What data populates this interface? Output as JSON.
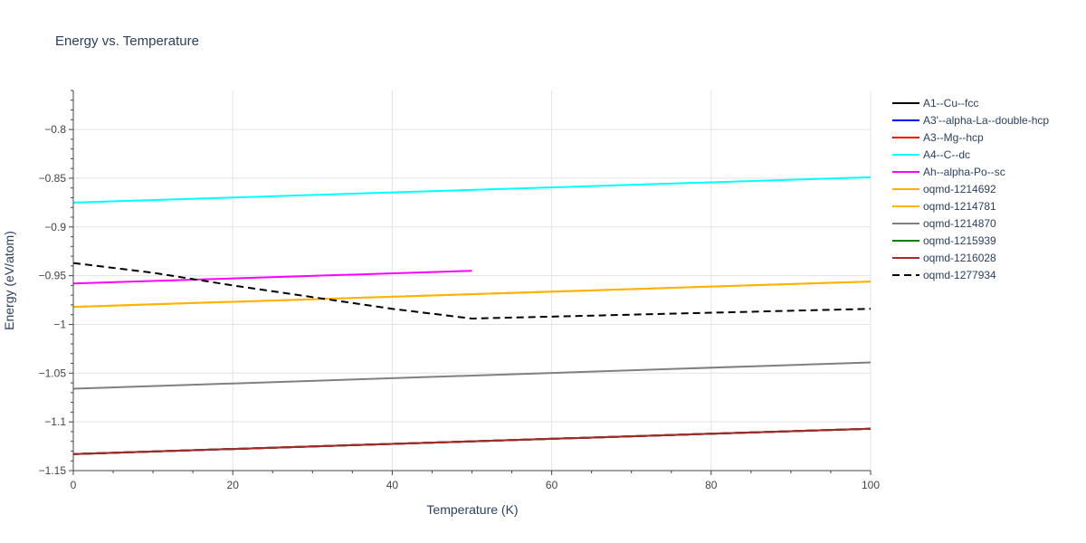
{
  "chart_data": {
    "type": "line",
    "title": "Energy vs. Temperature",
    "xlabel": "Temperature (K)",
    "ylabel": "Energy (eV/atom)",
    "xlim": [
      0,
      100
    ],
    "ylim": [
      -1.15,
      -0.76
    ],
    "xticks": [
      0,
      20,
      40,
      60,
      80,
      100
    ],
    "yticks": [
      -1.15,
      -1.1,
      -1.05,
      -1,
      -0.95,
      -0.9,
      -0.85,
      -0.8
    ],
    "xtick_labels": [
      "0",
      "20",
      "40",
      "60",
      "80",
      "100"
    ],
    "ytick_labels": [
      "−1.15",
      "−1.1",
      "−1.05",
      "−1",
      "−0.95",
      "−0.9",
      "−0.85",
      "−0.8"
    ],
    "grid": true,
    "legend_position": "right",
    "series": [
      {
        "name": "A1--Cu--fcc",
        "color": "#000000",
        "dash": "solid",
        "x": [
          0,
          100
        ],
        "y": [
          -1.133,
          -1.107
        ]
      },
      {
        "name": "A3'--alpha-La--double-hcp",
        "color": "#0000ff",
        "dash": "solid",
        "x": [
          0,
          100
        ],
        "y": [
          -1.133,
          -1.107
        ]
      },
      {
        "name": "A3--Mg--hcp",
        "color": "#ff0000",
        "dash": "solid",
        "x": [
          0,
          100
        ],
        "y": [
          -1.133,
          -1.107
        ]
      },
      {
        "name": "A4--C--dc",
        "color": "#00ffff",
        "dash": "solid",
        "x": [
          0,
          100
        ],
        "y": [
          -0.875,
          -0.849
        ]
      },
      {
        "name": "Ah--alpha-Po--sc",
        "color": "#ff00ff",
        "dash": "solid",
        "x": [
          0,
          50
        ],
        "y": [
          -0.958,
          -0.945
        ]
      },
      {
        "name": "oqmd-1214692",
        "color": "#ffb300",
        "dash": "solid",
        "x": [
          0,
          100
        ],
        "y": [
          -0.982,
          -0.956
        ]
      },
      {
        "name": "oqmd-1214781",
        "color": "#ffb300",
        "dash": "solid",
        "x": [
          0,
          100
        ],
        "y": [
          -0.982,
          -0.956
        ]
      },
      {
        "name": "oqmd-1214870",
        "color": "#808080",
        "dash": "solid",
        "x": [
          0,
          100
        ],
        "y": [
          -1.066,
          -1.039
        ]
      },
      {
        "name": "oqmd-1215939",
        "color": "#008000",
        "dash": "solid",
        "x": [
          0,
          100
        ],
        "y": [
          -1.133,
          -1.107
        ]
      },
      {
        "name": "oqmd-1216028",
        "color": "#a52a2a",
        "dash": "solid",
        "x": [
          0,
          100
        ],
        "y": [
          -1.133,
          -1.107
        ]
      },
      {
        "name": "oqmd-1277934",
        "color": "#000000",
        "dash": "dash",
        "x": [
          0,
          10,
          20,
          30,
          40,
          50,
          60,
          70,
          80,
          90,
          100
        ],
        "y": [
          -0.937,
          -0.947,
          -0.96,
          -0.972,
          -0.984,
          -0.994,
          -0.992,
          -0.99,
          -0.988,
          -0.986,
          -0.984
        ]
      }
    ]
  }
}
